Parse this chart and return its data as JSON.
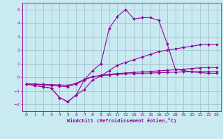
{
  "xlabel": "Windchill (Refroidissement éolien,°C)",
  "xlim": [
    -0.5,
    23.5
  ],
  "ylim": [
    -2.5,
    5.5
  ],
  "yticks": [
    -2,
    -1,
    0,
    1,
    2,
    3,
    4,
    5
  ],
  "xticks": [
    0,
    1,
    2,
    3,
    4,
    5,
    6,
    7,
    8,
    9,
    10,
    11,
    12,
    13,
    14,
    15,
    16,
    17,
    18,
    19,
    20,
    21,
    22,
    23
  ],
  "background_color": "#c8eaf0",
  "grid_color": "#a0b8cc",
  "line_color": "#990099",
  "series": [
    {
      "x": [
        0,
        1,
        2,
        3,
        4,
        5,
        6,
        7,
        8,
        9,
        10,
        11,
        12,
        13,
        14,
        15,
        16,
        17,
        18,
        19,
        20,
        21,
        22,
        23
      ],
      "y": [
        -0.5,
        -0.6,
        -0.7,
        -0.8,
        -1.5,
        -1.8,
        -1.3,
        -0.9,
        -0.2,
        0.1,
        0.5,
        0.9,
        1.1,
        1.3,
        1.5,
        1.7,
        1.9,
        2.0,
        2.1,
        2.2,
        2.3,
        2.4,
        2.4,
        2.4
      ]
    },
    {
      "x": [
        0,
        1,
        2,
        3,
        4,
        5,
        6,
        7,
        8,
        9,
        10,
        11,
        12,
        13,
        14,
        15,
        16,
        17,
        18,
        19,
        20,
        21,
        22,
        23
      ],
      "y": [
        -0.5,
        -0.6,
        -0.7,
        -0.8,
        -1.5,
        -1.8,
        -1.3,
        -0.2,
        0.5,
        1.0,
        3.6,
        4.5,
        5.0,
        4.3,
        4.4,
        4.4,
        4.2,
        2.5,
        0.6,
        0.5,
        0.4,
        0.35,
        0.3,
        0.3
      ]
    },
    {
      "x": [
        0,
        1,
        2,
        3,
        4,
        5,
        6,
        7,
        8,
        9,
        10,
        11,
        12,
        13,
        14,
        15,
        16,
        17,
        18,
        19,
        20,
        21,
        22,
        23
      ],
      "y": [
        -0.5,
        -0.5,
        -0.55,
        -0.6,
        -0.65,
        -0.68,
        -0.5,
        -0.2,
        0.05,
        0.15,
        0.22,
        0.28,
        0.32,
        0.36,
        0.4,
        0.44,
        0.48,
        0.52,
        0.56,
        0.6,
        0.65,
        0.7,
        0.72,
        0.72
      ]
    },
    {
      "x": [
        0,
        1,
        2,
        3,
        4,
        5,
        6,
        7,
        8,
        9,
        10,
        11,
        12,
        13,
        14,
        15,
        16,
        17,
        18,
        19,
        20,
        21,
        22,
        23
      ],
      "y": [
        -0.5,
        -0.5,
        -0.52,
        -0.54,
        -0.56,
        -0.58,
        -0.45,
        -0.15,
        0.05,
        0.12,
        0.18,
        0.22,
        0.25,
        0.28,
        0.3,
        0.32,
        0.34,
        0.36,
        0.38,
        0.4,
        0.42,
        0.42,
        0.42,
        0.42
      ]
    }
  ]
}
